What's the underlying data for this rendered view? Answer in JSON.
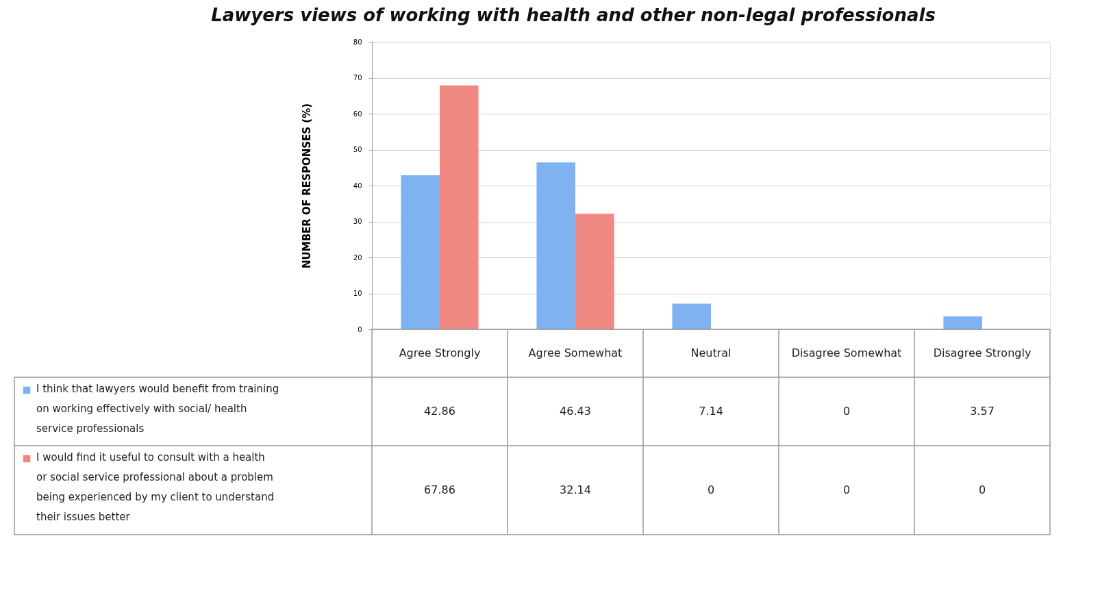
{
  "chart_data": {
    "type": "bar",
    "title": "Lawyers views of working with health and other non-legal professionals",
    "ylabel": "NUMBER OF RESPONSES (%)",
    "categories": [
      "Agree Strongly",
      "Agree Somewhat",
      "Neutral",
      "Disagree Somewhat",
      "Disagree Strongly"
    ],
    "series": [
      {
        "name": "I think that lawyers would benefit from training on working effectively with social/ health service professionals",
        "color": "#7fb2f0",
        "values": [
          42.86,
          46.43,
          7.14,
          0,
          3.57
        ]
      },
      {
        "name": "I would find it useful to consult with a health or social service professional about a problem being experienced by my client to understand their issues better",
        "color": "#f08882",
        "values": [
          67.86,
          32.14,
          0,
          0,
          0
        ]
      }
    ],
    "ylim": [
      0,
      80
    ],
    "yticks": [
      0,
      10,
      20,
      30,
      40,
      50,
      60,
      70,
      80
    ],
    "grid": "y",
    "legend": "bottom",
    "data_labels": true
  }
}
